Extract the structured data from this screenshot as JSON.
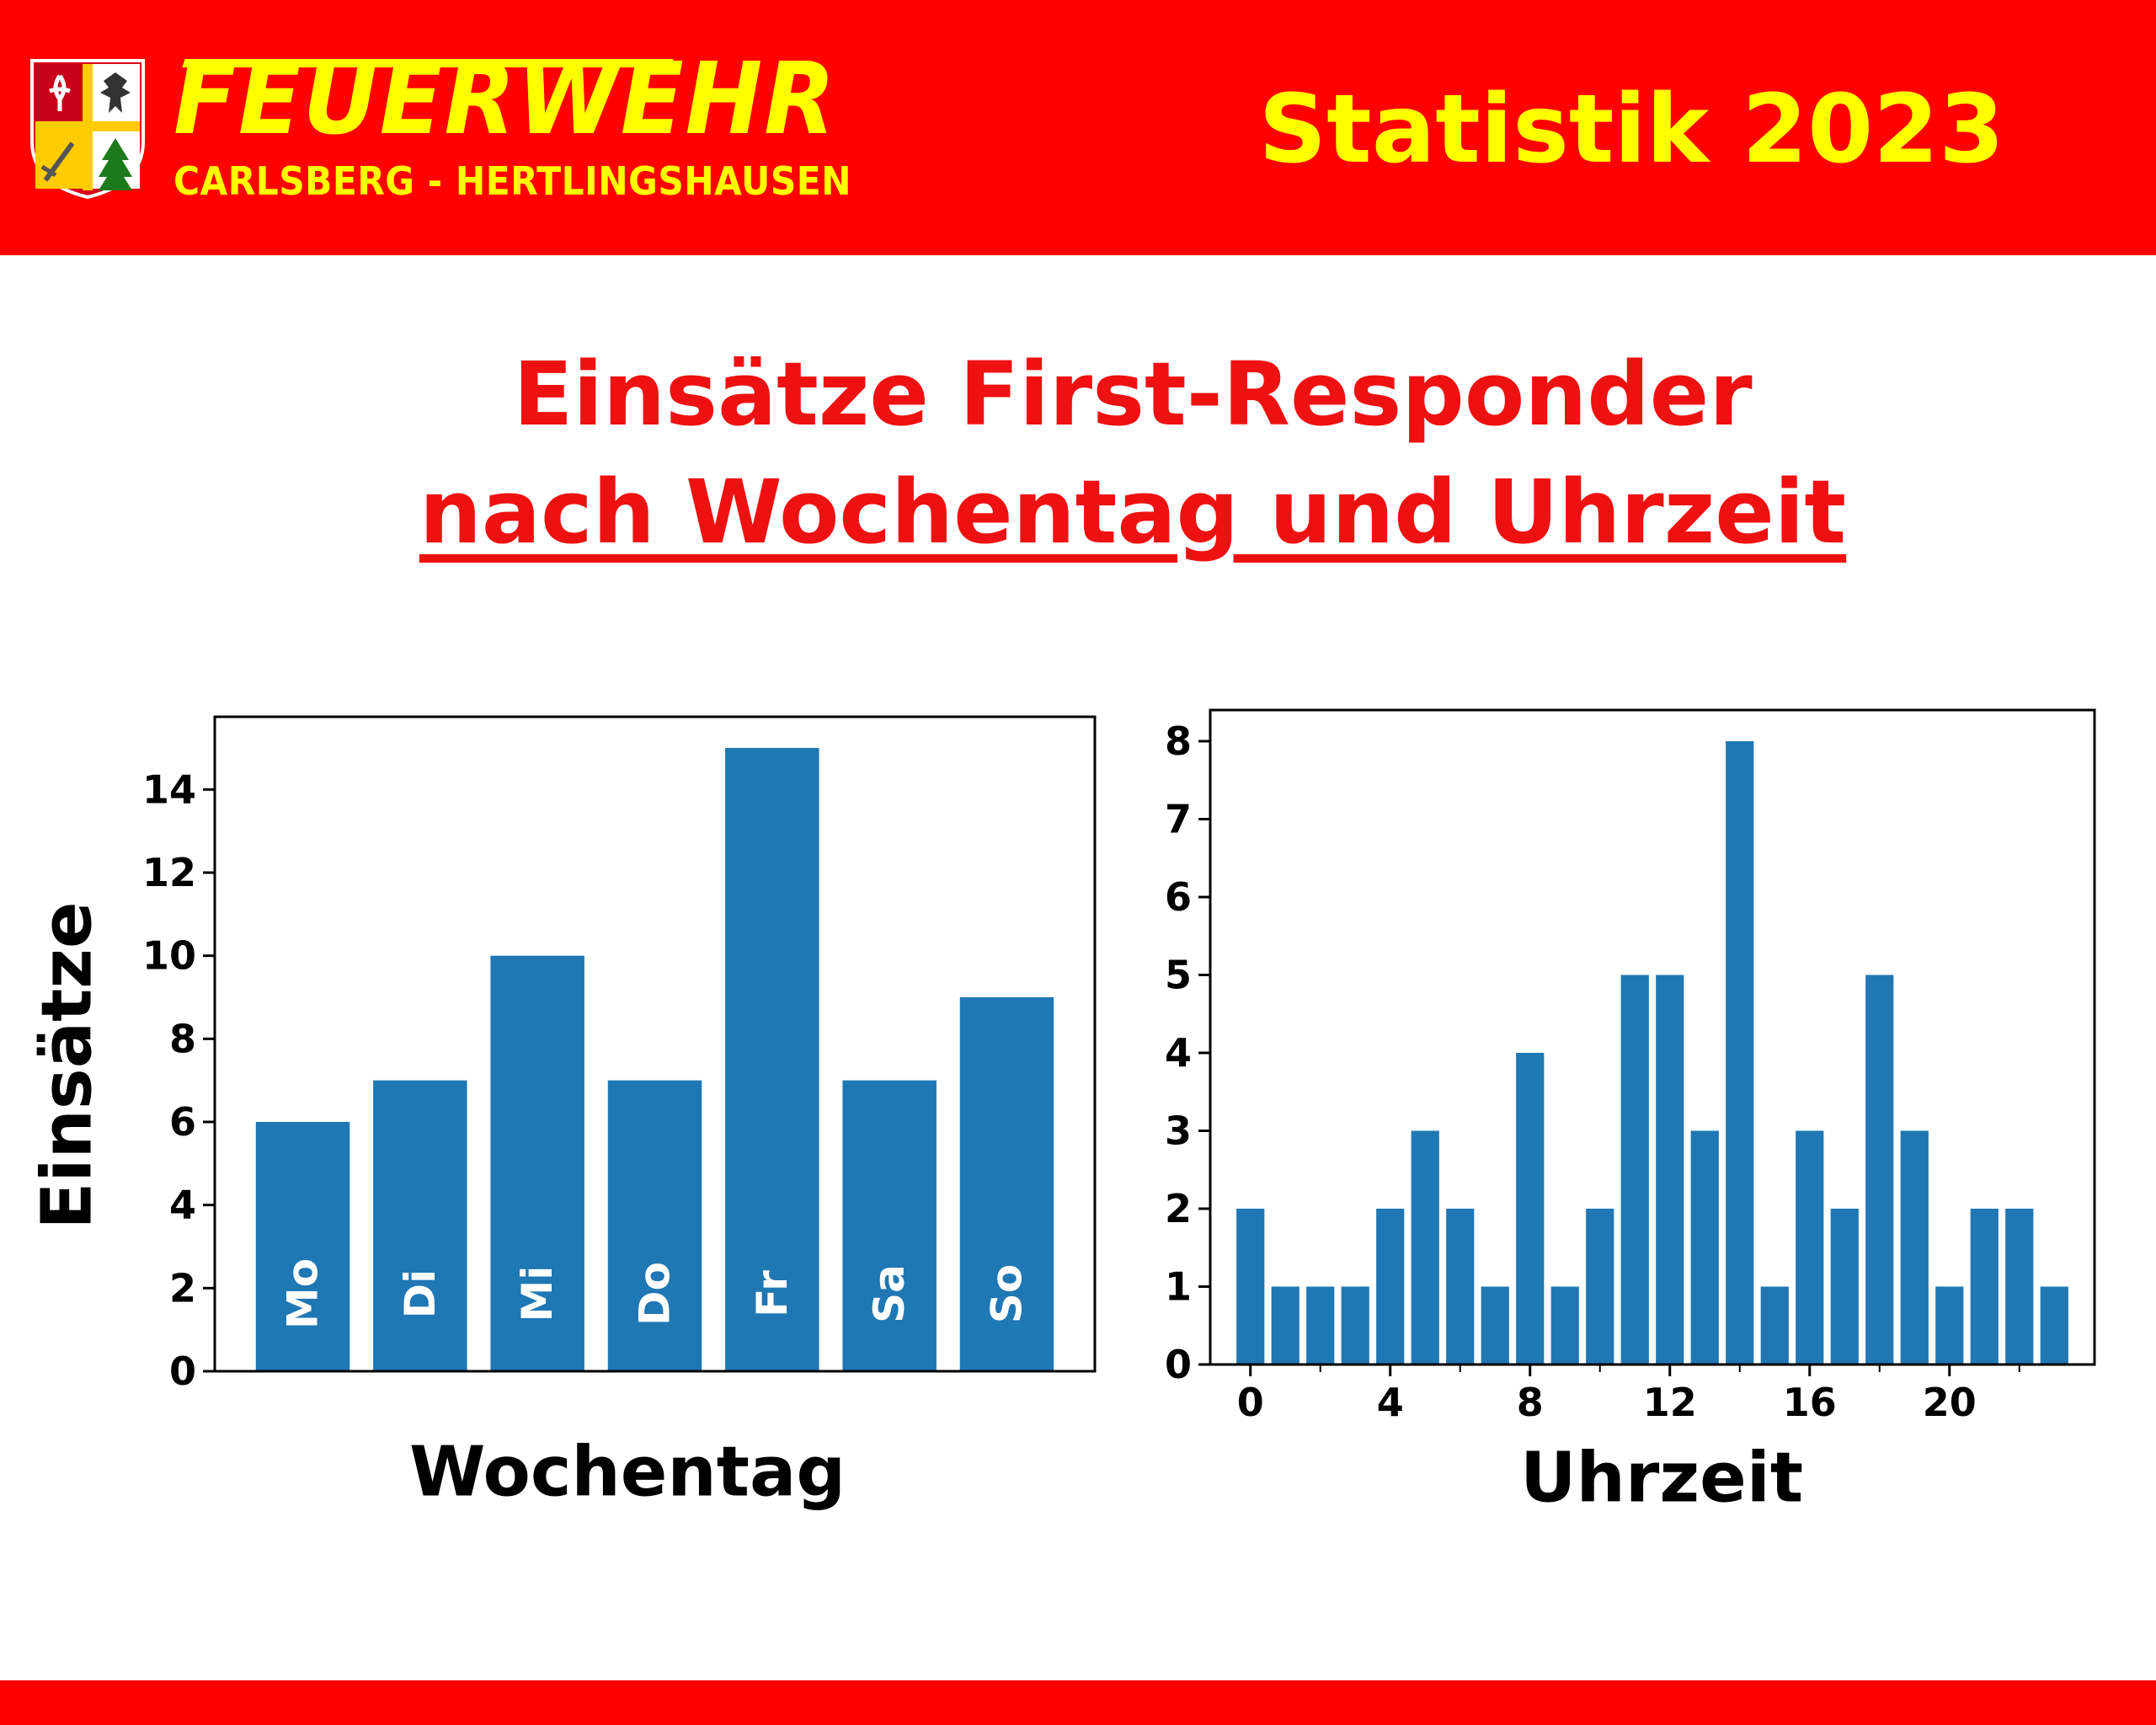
{
  "header": {
    "brand_name": "Feuerwehr",
    "brand_sub": "CARLSBERG - HERTLINGSHAUSEN",
    "title": "Statistik 2023",
    "background": "#ff0000",
    "text_color": "#ffff00"
  },
  "title": {
    "line1": "Einsätze First-Responder",
    "line2": "nach Wochentag und Uhrzeit",
    "color": "#ee1111"
  },
  "chart_data": [
    {
      "type": "bar",
      "categories": [
        "Mo",
        "Di",
        "Mi",
        "Do",
        "Fr",
        "Sa",
        "So"
      ],
      "values": [
        6,
        7,
        10,
        7,
        15,
        7,
        9
      ],
      "title": "",
      "xlabel": "Wochentag",
      "ylabel": "Einsätze",
      "ylim": [
        0,
        15.75
      ],
      "yticks": [
        0,
        2,
        4,
        6,
        8,
        10,
        12,
        14
      ],
      "category_labels_inside_bars": true,
      "bar_color": "#1f77b4",
      "grid": false
    },
    {
      "type": "bar",
      "x": [
        0,
        1,
        2,
        3,
        4,
        5,
        6,
        7,
        8,
        9,
        10,
        11,
        12,
        13,
        14,
        15,
        16,
        17,
        18,
        19,
        20,
        21,
        22,
        23
      ],
      "values": [
        2,
        1,
        1,
        1,
        2,
        3,
        2,
        1,
        4,
        1,
        2,
        5,
        5,
        3,
        8,
        1,
        3,
        2,
        5,
        3,
        1,
        2,
        2,
        1
      ],
      "title": "",
      "xlabel": "Uhrzeit",
      "ylabel": "",
      "xlim": [
        -1.15,
        24.15
      ],
      "ylim": [
        0,
        8.4
      ],
      "xticks": [
        0,
        4,
        8,
        12,
        16,
        20
      ],
      "xticks_minor": [
        2,
        6,
        10,
        14,
        18,
        22
      ],
      "yticks": [
        0,
        1,
        2,
        3,
        4,
        5,
        6,
        7,
        8
      ],
      "bar_color": "#1f77b4",
      "grid": false
    }
  ]
}
